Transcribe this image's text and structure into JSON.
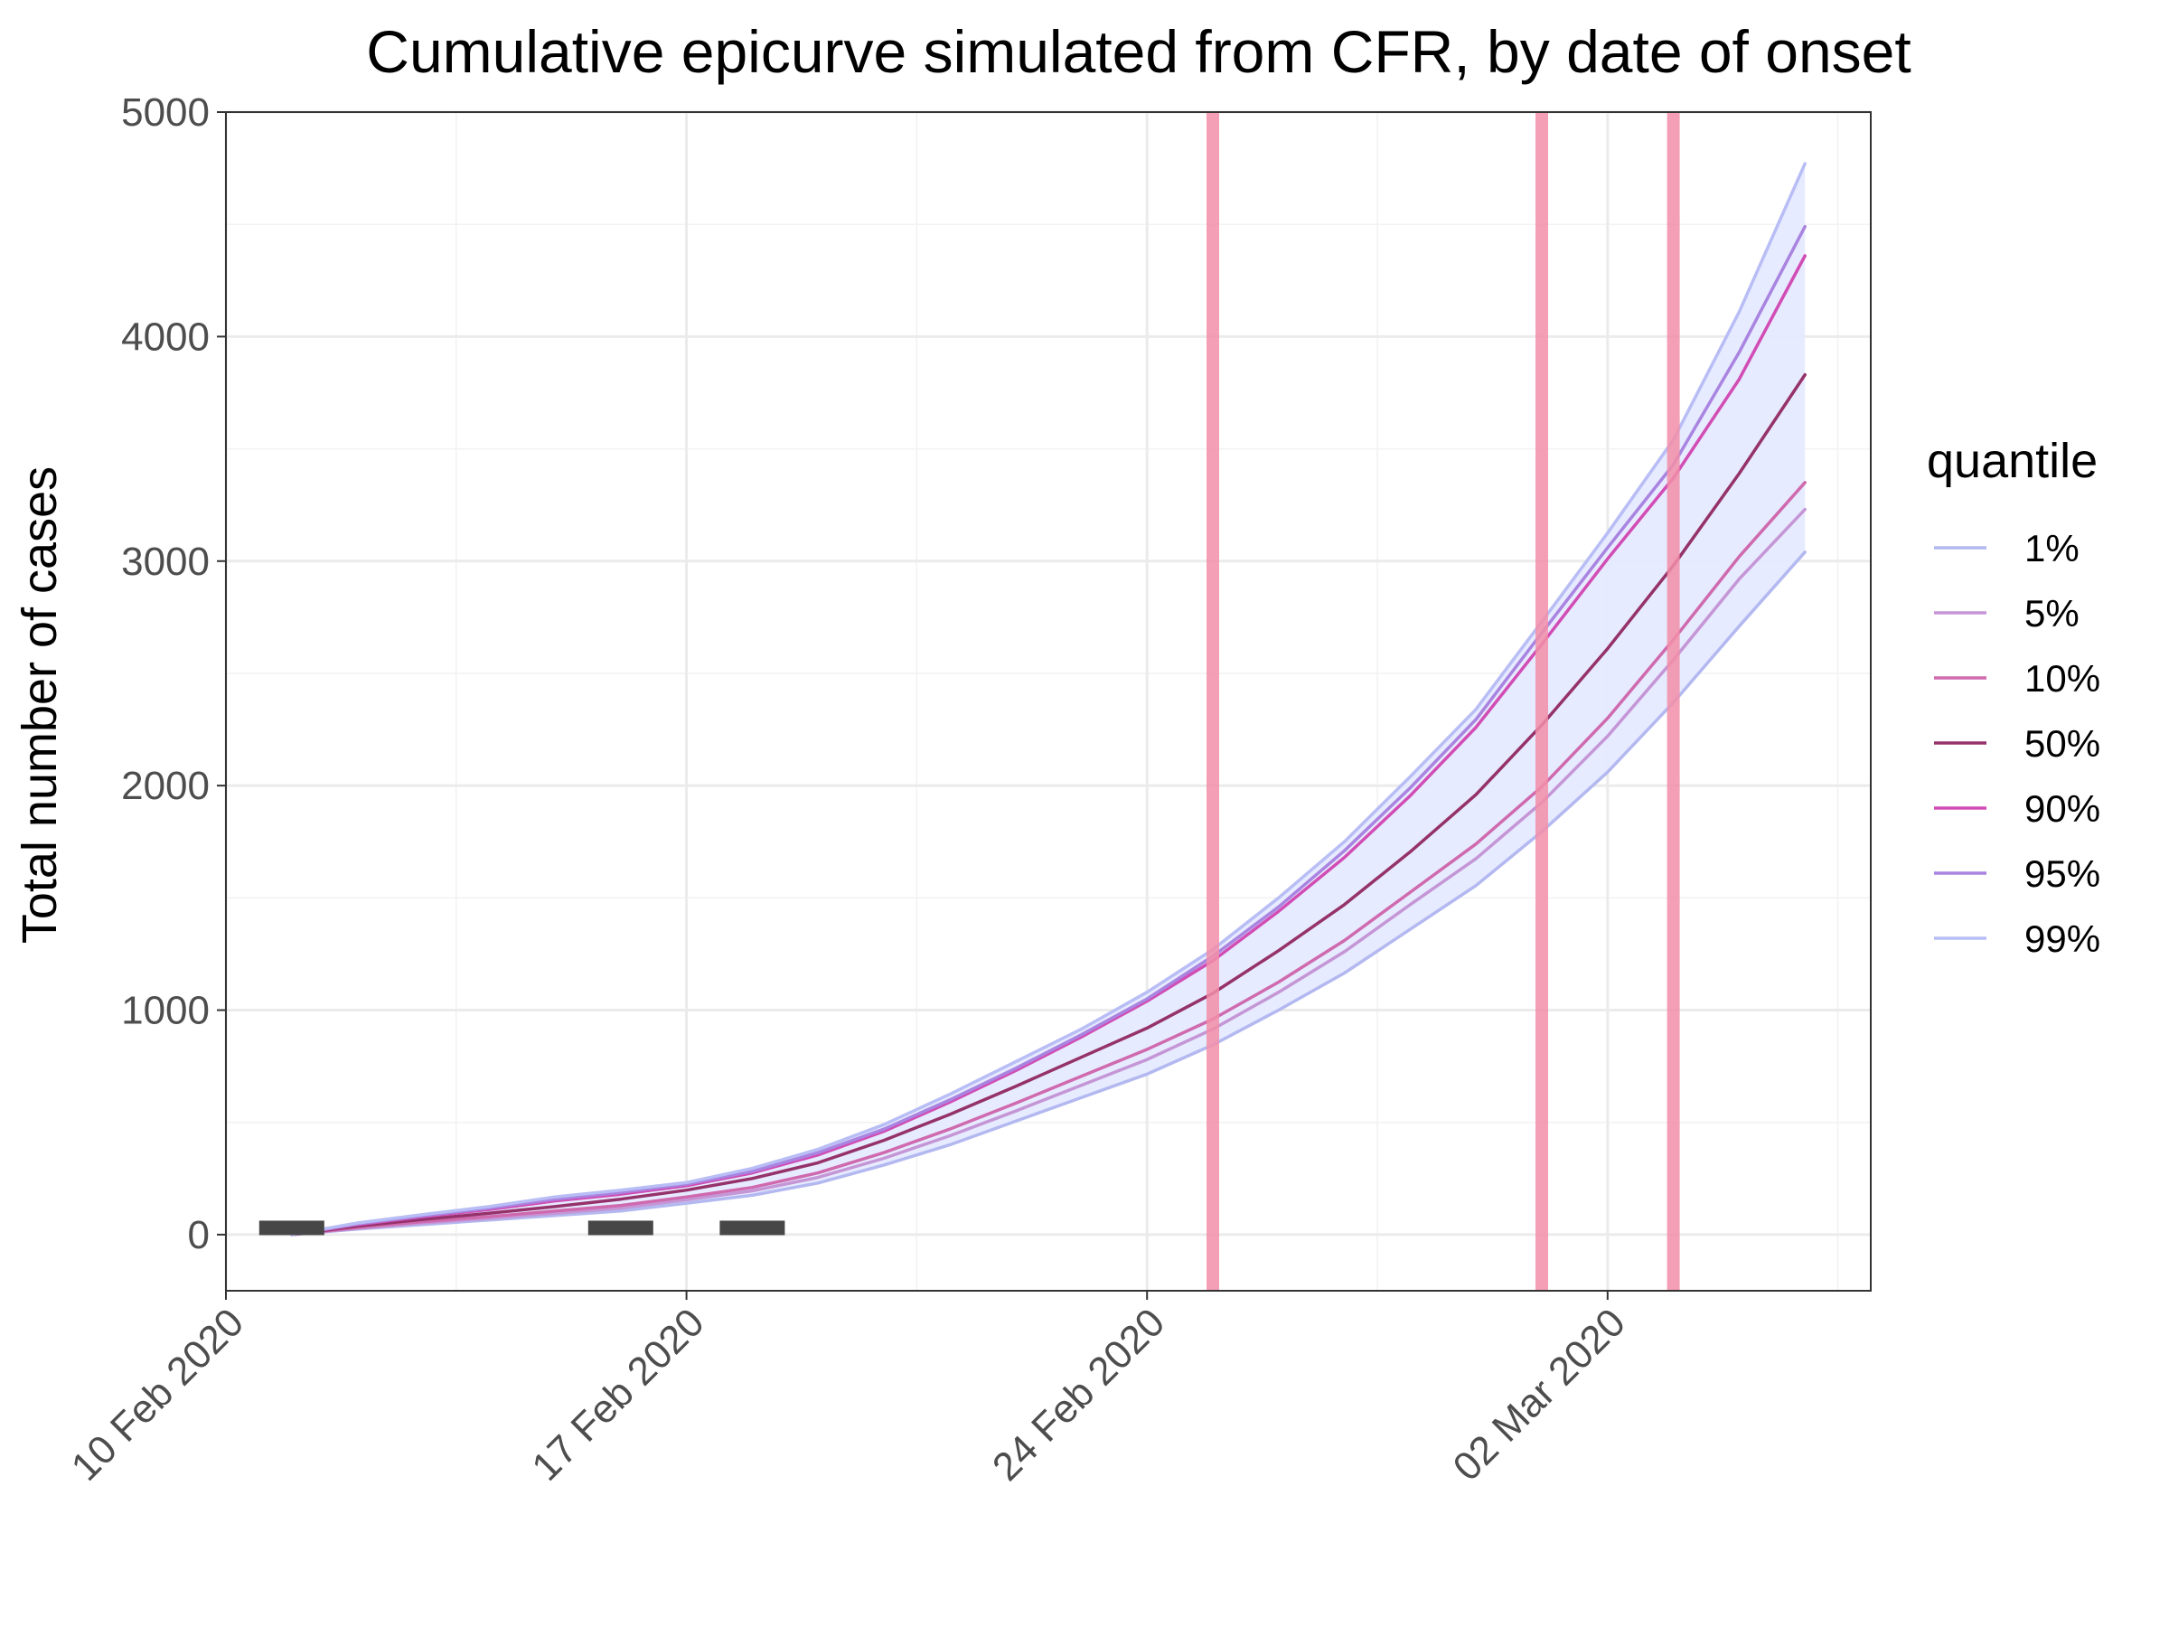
{
  "chart_data": {
    "type": "line",
    "title": "Cumulative epicurve simulated from CFR, by date of onset",
    "xlabel": "",
    "ylabel": "Total number of cases",
    "x_axis_type": "date",
    "xlim": [
      "2020-02-10",
      "2020-03-06"
    ],
    "ylim": [
      -250,
      5000
    ],
    "y_ticks": [
      0,
      1000,
      2000,
      3000,
      4000,
      5000
    ],
    "x_ticks": [
      {
        "date": "2020-02-10",
        "label": "10 Feb 2020"
      },
      {
        "date": "2020-02-17",
        "label": "17 Feb 2020"
      },
      {
        "date": "2020-02-24",
        "label": "24 Feb 2020"
      },
      {
        "date": "2020-03-02",
        "label": "02 Mar 2020"
      }
    ],
    "grid": true,
    "legend": {
      "title": "quantile",
      "position": "right"
    },
    "x": [
      "2020-02-11",
      "2020-02-12",
      "2020-02-13",
      "2020-02-14",
      "2020-02-15",
      "2020-02-16",
      "2020-02-17",
      "2020-02-18",
      "2020-02-19",
      "2020-02-20",
      "2020-02-21",
      "2020-02-22",
      "2020-02-23",
      "2020-02-24",
      "2020-02-25",
      "2020-02-26",
      "2020-02-27",
      "2020-02-28",
      "2020-02-29",
      "2020-03-01",
      "2020-03-02",
      "2020-03-03",
      "2020-03-04",
      "2020-03-05"
    ],
    "band": {
      "lower_series": "1%",
      "upper_series": "99%",
      "color": "#e6eaff"
    },
    "series": [
      {
        "name": "1%",
        "color": "#b3b9f0",
        "values": [
          0,
          25,
          45,
          65,
          85,
          105,
          140,
          175,
          230,
          310,
          400,
          505,
          610,
          715,
          845,
          1000,
          1165,
          1360,
          1555,
          1795,
          2060,
          2370,
          2710,
          3040
        ]
      },
      {
        "name": "5%",
        "color": "#c596d6",
        "values": [
          0,
          28,
          52,
          72,
          95,
          118,
          155,
          195,
          255,
          340,
          440,
          550,
          665,
          780,
          915,
          1080,
          1260,
          1470,
          1675,
          1925,
          2220,
          2560,
          2920,
          3230
        ]
      },
      {
        "name": "10%",
        "color": "#cf6aaf",
        "values": [
          0,
          32,
          58,
          80,
          105,
          130,
          168,
          210,
          275,
          365,
          470,
          585,
          705,
          825,
          960,
          1125,
          1310,
          1525,
          1740,
          1995,
          2300,
          2650,
          3020,
          3350
        ]
      },
      {
        "name": "50%",
        "color": "#95326b",
        "values": [
          0,
          38,
          68,
          95,
          125,
          158,
          198,
          250,
          320,
          420,
          535,
          660,
          790,
          920,
          1075,
          1265,
          1470,
          1705,
          1960,
          2270,
          2610,
          2980,
          3390,
          3830
        ]
      },
      {
        "name": "90%",
        "color": "#d14db5",
        "values": [
          0,
          45,
          80,
          112,
          150,
          180,
          218,
          275,
          355,
          460,
          590,
          730,
          880,
          1040,
          1220,
          1440,
          1680,
          1955,
          2260,
          2630,
          3010,
          3370,
          3810,
          4360
        ]
      },
      {
        "name": "95%",
        "color": "#a984e0",
        "values": [
          0,
          48,
          84,
          118,
          158,
          188,
          225,
          282,
          365,
          470,
          600,
          740,
          890,
          1050,
          1240,
          1460,
          1710,
          1990,
          2295,
          2680,
          3060,
          3430,
          3930,
          4490
        ]
      },
      {
        "name": "99%",
        "color": "#b8bdf5",
        "values": [
          0,
          52,
          90,
          125,
          168,
          198,
          232,
          295,
          380,
          490,
          625,
          770,
          915,
          1080,
          1270,
          1500,
          1750,
          2040,
          2340,
          2730,
          3125,
          3540,
          4110,
          4770
        ]
      }
    ],
    "observed_deaths": [
      {
        "date": "2020-02-11",
        "value": 30
      },
      {
        "date": "2020-02-16",
        "value": 30
      },
      {
        "date": "2020-02-18",
        "value": 30
      }
    ],
    "vertical_lines": {
      "dates": [
        "2020-02-25",
        "2020-03-01",
        "2020-03-03"
      ],
      "color": "#f28ea8"
    }
  }
}
